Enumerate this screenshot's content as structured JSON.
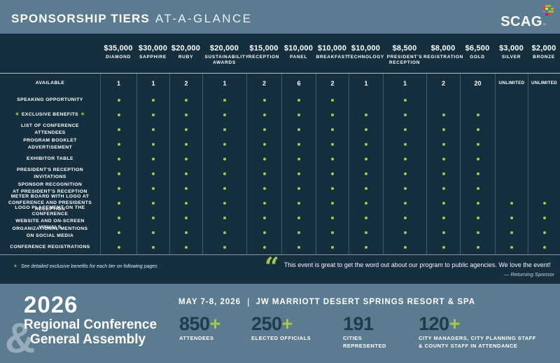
{
  "header": {
    "title_bold": "SPONSORSHIP TIERS",
    "title_light": "AT-A-GLANCE"
  },
  "logo": {
    "text": "SCAG",
    "tm": "™",
    "mosaic_colors": [
      "#f7941e",
      "#ee4036",
      "#00a79d",
      "#8dc63f",
      "#ffde17",
      "#92278f",
      "#e54ca0",
      "#27aae1"
    ]
  },
  "star_char": "✶",
  "tiers": [
    {
      "price": "$35,000",
      "name": "DIAMOND"
    },
    {
      "price": "$30,000",
      "name": "SAPPHIRE"
    },
    {
      "price": "$20,000",
      "name": "RUBY"
    },
    {
      "price": "$20,000",
      "name": "SUSTAINABILITY AWARDS"
    },
    {
      "price": "$15,000",
      "name": "RECEPTION"
    },
    {
      "price": "$10,000",
      "name": "PANEL"
    },
    {
      "price": "$10,000",
      "name": "BREAKFAST"
    },
    {
      "price": "$10,000",
      "name": "TECHNOLOGY"
    },
    {
      "price": "$8,500",
      "name": "PRESIDENT'S RECEPTION"
    },
    {
      "price": "$8,000",
      "name": "REGISTRATION"
    },
    {
      "price": "$6,500",
      "name": "GOLD"
    },
    {
      "price": "$3,000",
      "name": "SILVER"
    },
    {
      "price": "$2,000",
      "name": "BRONZE"
    }
  ],
  "rows": [
    {
      "label": "AVAILABLE",
      "values": [
        "1",
        "1",
        "2",
        "1",
        "2",
        "6",
        "2",
        "1",
        "1",
        "2",
        "20",
        "UNLIMITED",
        "UNLIMITED"
      ]
    },
    {
      "label": "SPEAKING OPPORTUNITY",
      "dots": [
        1,
        1,
        1,
        1,
        1,
        1,
        1,
        0,
        1,
        0,
        0,
        0,
        0
      ]
    },
    {
      "label": "EXCLUSIVE BENEFITS",
      "starred": true,
      "dots": [
        1,
        1,
        1,
        1,
        1,
        1,
        1,
        1,
        1,
        1,
        1,
        0,
        0
      ]
    },
    {
      "label": "LIST OF CONFERENCE ATTENDEES",
      "dots": [
        1,
        1,
        1,
        1,
        1,
        1,
        1,
        1,
        1,
        1,
        1,
        0,
        0
      ]
    },
    {
      "label": "PROGRAM BOOKLET ADVERTISEMENT",
      "dots": [
        1,
        1,
        1,
        1,
        1,
        1,
        1,
        1,
        1,
        1,
        1,
        0,
        0
      ]
    },
    {
      "label": "EXHIBITOR TABLE",
      "dots": [
        1,
        1,
        1,
        1,
        1,
        1,
        1,
        1,
        1,
        1,
        1,
        0,
        0
      ]
    },
    {
      "label": "PRESIDENT'S RECEPTION INVITATIONS",
      "dots": [
        1,
        1,
        1,
        1,
        1,
        1,
        1,
        1,
        1,
        1,
        1,
        0,
        0
      ]
    },
    {
      "label": "SPONSOR RECOGNITION\nAT PRESIDENT'S RECEPTION",
      "dots": [
        1,
        1,
        1,
        1,
        1,
        1,
        1,
        1,
        1,
        1,
        1,
        0,
        0
      ]
    },
    {
      "label": "METER BOARD WITH LOGO AT\nCONFERENCE AND PRESIDENTS RECEPTION",
      "dots": [
        1,
        1,
        1,
        1,
        1,
        1,
        1,
        1,
        1,
        1,
        1,
        1,
        1
      ]
    },
    {
      "label": "LOGO PLACEMENT ON THE CONFERENCE\nWEBSITE AND ON-SCREEN VISUALS",
      "dots": [
        1,
        1,
        1,
        1,
        1,
        1,
        1,
        1,
        1,
        1,
        1,
        1,
        1
      ]
    },
    {
      "label": "ORGANIZATIONAL MENTIONS\nON SOCIAL MEDIA",
      "dots": [
        1,
        1,
        1,
        1,
        1,
        1,
        1,
        1,
        1,
        1,
        1,
        1,
        1
      ]
    },
    {
      "label": "CONFERENCE REGISTRATIONS",
      "dots": [
        1,
        1,
        1,
        1,
        1,
        1,
        1,
        1,
        1,
        1,
        1,
        1,
        1
      ]
    }
  ],
  "footnote": {
    "star": "✶",
    "text": "See detailed exclusive benefits for each tier on following pages"
  },
  "quote": {
    "icon": "“",
    "text": "This event is great to get the word out about our program to public agencies. We love the event!",
    "attribution": "— Returning Sponsor"
  },
  "footer": {
    "year": "2026",
    "ampersand": "&",
    "line1": "Regional Conference",
    "line2": "General Assembly",
    "date": "MAY 7-8, 2026",
    "separator": "|",
    "venue": "JW MARRIOTT DESERT SPRINGS RESORT & SPA",
    "stats": [
      {
        "number": "850",
        "plus": "+",
        "label": "ATTENDEES"
      },
      {
        "number": "250",
        "plus": "+",
        "label": "ELECTED OFFICIALS"
      },
      {
        "number": "191",
        "plus": "",
        "label": "CITIES\nREPRESENTED"
      },
      {
        "number": "120",
        "plus": "+",
        "label": "CITY MANAGERS, CITY PLANNING STAFF\n& COUNTY STAFF IN ATTENDANCE"
      }
    ]
  },
  "colors": {
    "slate": "#5a7b90",
    "navy": "#152f3e",
    "green": "#a6c851",
    "stat_number": "#1d3c4e"
  }
}
